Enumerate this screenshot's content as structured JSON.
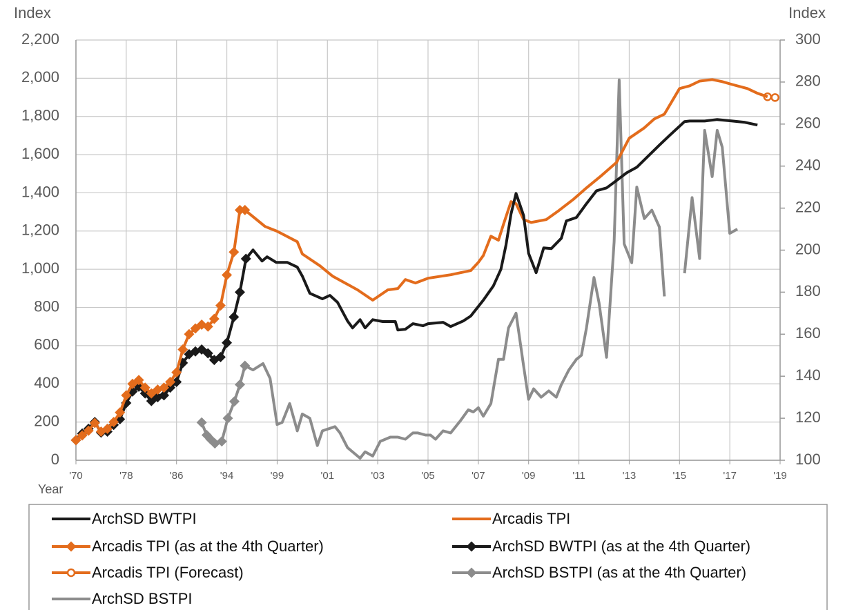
{
  "chart_data": {
    "type": "line",
    "y_label": "Index",
    "y2_label": "Index",
    "x_label": "Year",
    "xlim": [
      1970,
      2019
    ],
    "xticks": [
      {
        "value": 1970,
        "label": "'70"
      },
      {
        "value": 1978,
        "label": "'78"
      },
      {
        "value": 1986,
        "label": "'86"
      },
      {
        "value": 1994,
        "label": "'94"
      },
      {
        "value": 1999,
        "label": "'99"
      },
      {
        "value": 2001,
        "label": "'01"
      },
      {
        "value": 2003,
        "label": "'03"
      },
      {
        "value": 2005,
        "label": "'05"
      },
      {
        "value": 2007,
        "label": "'07"
      },
      {
        "value": 2009,
        "label": "'09"
      },
      {
        "value": 2011,
        "label": "'11"
      },
      {
        "value": 2013,
        "label": "'13"
      },
      {
        "value": 2015,
        "label": "'15"
      },
      {
        "value": 2017,
        "label": "'17"
      },
      {
        "value": 2019,
        "label": "'19"
      }
    ],
    "ylim": [
      0,
      2200
    ],
    "yticks": [
      0,
      200,
      400,
      600,
      800,
      {
        "value": 1000,
        "label": "1,000"
      },
      {
        "value": 1200,
        "label": "1,200"
      },
      {
        "value": 1400,
        "label": "1,400"
      },
      {
        "value": 1600,
        "label": "1,600"
      },
      {
        "value": 1800,
        "label": "1,800"
      },
      {
        "value": 2000,
        "label": "2,000"
      },
      {
        "value": 2200,
        "label": "2,200"
      }
    ],
    "y2lim": [
      100,
      300
    ],
    "y2ticks": [
      100,
      120,
      140,
      160,
      180,
      200,
      220,
      240,
      260,
      280,
      300
    ],
    "grid": true,
    "legend": "bottom",
    "series": [
      {
        "name": "ArchSD BWTPI",
        "color": "#1a1a1a",
        "marker": "none",
        "x": [
          1995.9,
          1996.6,
          1997.5,
          1998,
          1998.9,
          1999.4,
          1999.8,
          2000,
          2000.3,
          2000.8,
          2001.1,
          2001.4,
          2001.8,
          2002,
          2002.3,
          2002.5,
          2002.8,
          2003.2,
          2003.7,
          2003.8,
          2004.1,
          2004.4,
          2004.8,
          2005,
          2005.6,
          2005.9,
          2006.4,
          2006.7,
          2007.2,
          2007.6,
          2007.9,
          2008.1,
          2008.3,
          2008.5,
          2008.8,
          2009,
          2009.3,
          2009.6,
          2009.9,
          2010.3,
          2010.5,
          2010.9,
          2011.3,
          2011.7,
          2012.1,
          2012.4,
          2012.9,
          2013.3,
          2013.7,
          2014.2,
          2014.6,
          2015.2,
          2015.4,
          2016,
          2016.5,
          2017.1,
          2017.6,
          2018.1
        ],
        "values": [
          1055,
          1101,
          1043,
          1065,
          1036,
          1036,
          1011,
          964,
          874,
          845,
          863,
          827,
          729,
          693,
          736,
          693,
          736,
          726,
          726,
          682,
          686,
          715,
          704,
          715,
          722,
          700,
          729,
          755,
          838,
          913,
          1000,
          1126,
          1289,
          1397,
          1282,
          1083,
          982,
          1112,
          1108,
          1162,
          1253,
          1271,
          1343,
          1411,
          1426,
          1455,
          1505,
          1534,
          1585,
          1650,
          1700,
          1773,
          1776,
          1776,
          1784,
          1776,
          1769,
          1755
        ]
      },
      {
        "name": "Arcadis TPI",
        "color": "#e36c1c",
        "marker": "none",
        "x": [
          1995.8,
          1997.8,
          1999,
          1999.8,
          2000,
          2000.7,
          2001.2,
          2001.7,
          2002.2,
          2002.8,
          2003.4,
          2003.8,
          2004.1,
          2004.5,
          2005,
          2005.9,
          2006.7,
          2007,
          2007.2,
          2007.5,
          2007.8,
          2008,
          2008.3,
          2008.5,
          2008.8,
          2009.1,
          2009.7,
          2010.2,
          2010.8,
          2011.3,
          2011.9,
          2012.5,
          2013,
          2013.6,
          2014,
          2014.4,
          2015,
          2015.4,
          2015.8,
          2016.3,
          2016.7,
          2017.1,
          2017.7,
          2018.1,
          2018.5
        ],
        "values": [
          1310,
          1224,
          1199,
          1144,
          1080,
          1018,
          964,
          928,
          892,
          838,
          892,
          899,
          946,
          928,
          953,
          971,
          993,
          1036,
          1072,
          1173,
          1152,
          1235,
          1354,
          1343,
          1260,
          1245,
          1260,
          1307,
          1368,
          1426,
          1491,
          1560,
          1686,
          1740,
          1787,
          1812,
          1946,
          1960,
          1985,
          1993,
          1982,
          1967,
          1946,
          1921,
          1903
        ]
      },
      {
        "name": "Arcadis TPI (as at the 4th Quarter)",
        "color": "#e36c1c",
        "marker": "diamond",
        "x": [
          1970,
          1971,
          1972,
          1973,
          1974,
          1975,
          1976,
          1977,
          1978,
          1979,
          1980,
          1981,
          1982,
          1983,
          1984,
          1985,
          1986,
          1987,
          1988,
          1989,
          1990,
          1991,
          1992,
          1993,
          1994,
          1994.7,
          1995.3,
          1995.8
        ],
        "values": [
          105,
          130,
          155,
          195,
          150,
          165,
          200,
          250,
          340,
          400,
          420,
          380,
          350,
          370,
          380,
          410,
          460,
          580,
          660,
          690,
          710,
          700,
          740,
          810,
          970,
          1090,
          1310,
          1310
        ]
      },
      {
        "name": "ArchSD BWTPI (as at the 4th Quarter)",
        "color": "#1a1a1a",
        "marker": "diamond",
        "x": [
          1970,
          1971,
          1972,
          1973,
          1974,
          1975,
          1976,
          1977,
          1978,
          1979,
          1980,
          1981,
          1982,
          1983,
          1984,
          1985,
          1986,
          1987,
          1988,
          1989,
          1990,
          1991,
          1992,
          1993,
          1994,
          1994.7,
          1995.3,
          1995.9
        ],
        "values": [
          105,
          140,
          165,
          200,
          145,
          150,
          185,
          215,
          300,
          360,
          385,
          350,
          310,
          330,
          340,
          380,
          410,
          510,
          555,
          570,
          580,
          560,
          525,
          540,
          615,
          750,
          880,
          1055
        ]
      },
      {
        "name": "Arcadis TPI (Forecast)",
        "color": "#e36c1c",
        "marker": "circle-open",
        "x": [
          2018.5,
          2018.8
        ],
        "values": [
          1903,
          1899
        ]
      },
      {
        "name": "ArchSD BSTPI (as at the 4th Quarter)",
        "color": "#8c8c8c",
        "marker": "diamond",
        "axis": "y2",
        "x": [
          1990,
          1990.8,
          1991.4,
          1992.1,
          1993.2,
          1994.1,
          1994.75,
          1995.3,
          1995.8
        ],
        "values": [
          118,
          112,
          110,
          108,
          109,
          120,
          128,
          136,
          145
        ]
      },
      {
        "name": "ArchSD BSTPI",
        "color": "#8c8c8c",
        "marker": "none",
        "axis": "y2",
        "x": [
          1995.8,
          1996.6,
          1997.6,
          1998.3,
          1999,
          1999.2,
          1999.5,
          1999.8,
          2000,
          2000.3,
          2000.6,
          2000.8,
          2001.3,
          2001.5,
          2001.8,
          2002.3,
          2002.5,
          2002.8,
          2003.1,
          2003.5,
          2003.8,
          2004.1,
          2004.4,
          2004.6,
          2004.9,
          2005.1,
          2005.3,
          2005.6,
          2005.9,
          2006.3,
          2006.6,
          2006.8,
          2007,
          2007.2,
          2007.5,
          2007.8,
          2008,
          2008.2,
          2008.5,
          2008.8,
          2009,
          2009.2,
          2009.5,
          2009.8,
          2010.1,
          2010.3,
          2010.6,
          2010.9,
          2011.1,
          2011.3,
          2011.6,
          2011.8,
          2012.1,
          2012.4,
          2012.6,
          2012.8,
          2013.1,
          2013.3,
          2013.6,
          2013.9,
          2014.2,
          2014.4,
          2014.8,
          2015.2,
          2015.5,
          2015.8,
          2016,
          2016.3,
          2016.5,
          2016.7,
          2017,
          2017.3
        ],
        "values": [
          145,
          143,
          146,
          139,
          117,
          118,
          127,
          114,
          122,
          120,
          107,
          114,
          116,
          113,
          106,
          101,
          104,
          102,
          109,
          111,
          111,
          110,
          113,
          113,
          112,
          112,
          110,
          114,
          113,
          119,
          124,
          123,
          125,
          121,
          127,
          148,
          148,
          163,
          170,
          145,
          129,
          134,
          130,
          133,
          130,
          136,
          143,
          148,
          150,
          163,
          187,
          175,
          149,
          204,
          281,
          203,
          194,
          230,
          215,
          219,
          211,
          178,
          null,
          189,
          225,
          196,
          257,
          235,
          257,
          249,
          208,
          210
        ]
      }
    ]
  }
}
